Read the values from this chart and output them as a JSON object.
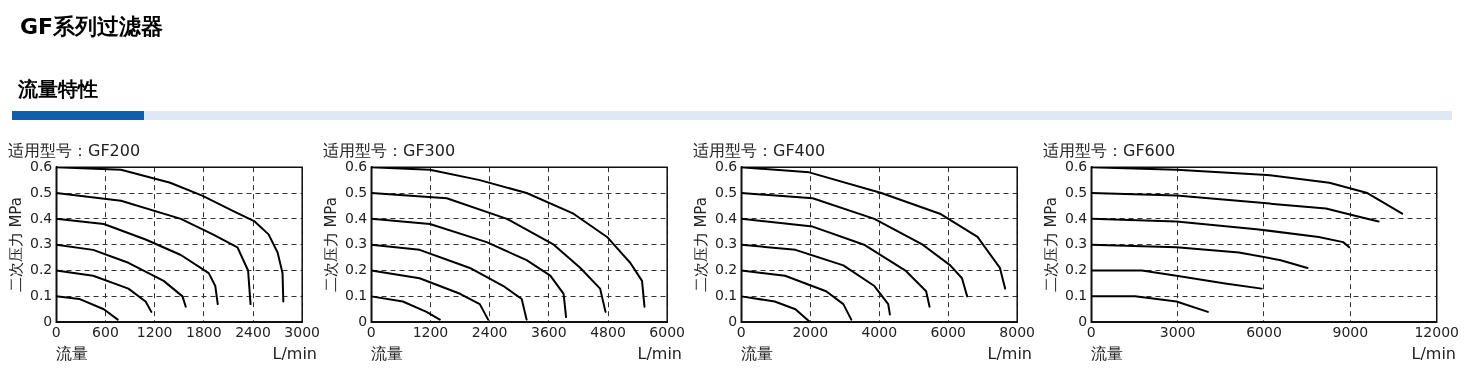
{
  "chart_data": [
    {
      "type": "other",
      "title": "GF系列过滤器",
      "subtitle": "流量特性"
    },
    {
      "type": "line",
      "title": "适用型号：GF200",
      "xlabel": "流量",
      "ylabel": "二次压力 MPa",
      "annotations": [
        "L/min"
      ],
      "xlim": [
        0,
        3000
      ],
      "xticks": [
        0,
        600,
        1200,
        1800,
        2400,
        3000
      ],
      "ylim": [
        0,
        0.6
      ],
      "yticks": [
        0,
        0.1,
        0.2,
        0.3,
        0.4,
        0.5,
        0.6
      ],
      "grid": true,
      "marker": "none",
      "series": [
        {
          "color": "#000000",
          "x": [
            0,
            280,
            580,
            750
          ],
          "values": [
            0.1,
            0.09,
            0.05,
            0.01
          ]
        },
        {
          "color": "#000000",
          "x": [
            0,
            450,
            880,
            1090,
            1160
          ],
          "values": [
            0.2,
            0.18,
            0.13,
            0.08,
            0.04
          ]
        },
        {
          "color": "#000000",
          "x": [
            0,
            450,
            880,
            1310,
            1540,
            1580
          ],
          "values": [
            0.3,
            0.28,
            0.23,
            0.16,
            0.1,
            0.06
          ]
        },
        {
          "color": "#000000",
          "x": [
            0,
            580,
            1090,
            1520,
            1860,
            1940,
            1970
          ],
          "values": [
            0.4,
            0.38,
            0.32,
            0.26,
            0.19,
            0.14,
            0.07
          ]
        },
        {
          "color": "#000000",
          "x": [
            0,
            790,
            1520,
            1910,
            2210,
            2340,
            2370
          ],
          "values": [
            0.5,
            0.47,
            0.4,
            0.34,
            0.29,
            0.2,
            0.07
          ]
        },
        {
          "color": "#000000",
          "x": [
            0,
            790,
            1390,
            1780,
            2160,
            2420,
            2590,
            2700,
            2760,
            2770
          ],
          "values": [
            0.6,
            0.59,
            0.54,
            0.49,
            0.43,
            0.39,
            0.34,
            0.27,
            0.19,
            0.08
          ]
        }
      ]
    },
    {
      "type": "line",
      "title": "适用型号：GF300",
      "xlabel": "流量",
      "ylabel": "二次压力 MPa",
      "annotations": [
        "L/min"
      ],
      "xlim": [
        0,
        6000
      ],
      "xticks": [
        0,
        1200,
        2400,
        3600,
        4800,
        6000
      ],
      "ylim": [
        0,
        0.6
      ],
      "yticks": [
        0,
        0.1,
        0.2,
        0.3,
        0.4,
        0.5,
        0.6
      ],
      "grid": true,
      "marker": "none",
      "series": [
        {
          "color": "#000000",
          "x": [
            0,
            640,
            1120,
            1390
          ],
          "values": [
            0.1,
            0.08,
            0.04,
            0.01
          ]
        },
        {
          "color": "#000000",
          "x": [
            0,
            980,
            1800,
            2200,
            2370
          ],
          "values": [
            0.2,
            0.17,
            0.11,
            0.07,
            0.01
          ]
        },
        {
          "color": "#000000",
          "x": [
            0,
            980,
            2000,
            2680,
            3050,
            3150
          ],
          "values": [
            0.3,
            0.28,
            0.21,
            0.14,
            0.09,
            0.01
          ]
        },
        {
          "color": "#000000",
          "x": [
            0,
            1190,
            2340,
            3150,
            3630,
            3900,
            3950
          ],
          "values": [
            0.4,
            0.38,
            0.31,
            0.24,
            0.18,
            0.11,
            0.02
          ]
        },
        {
          "color": "#000000",
          "x": [
            0,
            1530,
            2750,
            3700,
            4240,
            4640,
            4750
          ],
          "values": [
            0.5,
            0.48,
            0.4,
            0.3,
            0.21,
            0.13,
            0.04
          ]
        },
        {
          "color": "#000000",
          "x": [
            0,
            1190,
            2200,
            3150,
            4100,
            4780,
            5250,
            5490,
            5540
          ],
          "values": [
            0.6,
            0.59,
            0.55,
            0.5,
            0.42,
            0.33,
            0.23,
            0.16,
            0.06
          ]
        }
      ]
    },
    {
      "type": "line",
      "title": "适用型号：GF400",
      "xlabel": "流量",
      "ylabel": "二次压力 MPa",
      "annotations": [
        "L/min"
      ],
      "xlim": [
        0,
        8000
      ],
      "xticks": [
        0,
        2000,
        4000,
        6000,
        8000
      ],
      "ylim": [
        0,
        0.6
      ],
      "yticks": [
        0,
        0.1,
        0.2,
        0.3,
        0.4,
        0.5,
        0.6
      ],
      "grid": true,
      "marker": "none",
      "series": [
        {
          "color": "#000000",
          "x": [
            0,
            970,
            1570,
            2000
          ],
          "values": [
            0.1,
            0.08,
            0.05,
            0.0
          ]
        },
        {
          "color": "#000000",
          "x": [
            0,
            1270,
            2460,
            2960,
            3190
          ],
          "values": [
            0.2,
            0.18,
            0.12,
            0.07,
            0.01
          ]
        },
        {
          "color": "#000000",
          "x": [
            0,
            1570,
            2960,
            3860,
            4260,
            4310
          ],
          "values": [
            0.3,
            0.28,
            0.22,
            0.14,
            0.07,
            0.03
          ]
        },
        {
          "color": "#000000",
          "x": [
            0,
            2070,
            3560,
            4760,
            5360,
            5460
          ],
          "values": [
            0.4,
            0.37,
            0.3,
            0.2,
            0.12,
            0.06
          ]
        },
        {
          "color": "#000000",
          "x": [
            0,
            2070,
            3860,
            5260,
            6060,
            6400,
            6550
          ],
          "values": [
            0.5,
            0.48,
            0.4,
            0.3,
            0.22,
            0.17,
            0.1
          ]
        },
        {
          "color": "#000000",
          "x": [
            0,
            1970,
            4060,
            5760,
            6850,
            7500,
            7650
          ],
          "values": [
            0.6,
            0.58,
            0.5,
            0.42,
            0.33,
            0.21,
            0.13
          ]
        }
      ]
    },
    {
      "type": "line",
      "title": "适用型号：GF600",
      "xlabel": "流量",
      "ylabel": "二次压力 MPa",
      "annotations": [
        "L/min"
      ],
      "xlim": [
        0,
        12000
      ],
      "xticks": [
        0,
        3000,
        6000,
        9000,
        12000
      ],
      "ylim": [
        0,
        0.6
      ],
      "yticks": [
        0,
        0.1,
        0.2,
        0.3,
        0.4,
        0.5,
        0.6
      ],
      "grid": true,
      "marker": "none",
      "series": [
        {
          "color": "#000000",
          "x": [
            0,
            1520,
            2960,
            4050
          ],
          "values": [
            0.1,
            0.1,
            0.08,
            0.04
          ]
        },
        {
          "color": "#000000",
          "x": [
            0,
            1760,
            2960,
            4650,
            5920
          ],
          "values": [
            0.2,
            0.2,
            0.18,
            0.15,
            0.13
          ]
        },
        {
          "color": "#000000",
          "x": [
            0,
            2960,
            5130,
            6580,
            7510
          ],
          "values": [
            0.3,
            0.29,
            0.27,
            0.24,
            0.21
          ]
        },
        {
          "color": "#000000",
          "x": [
            0,
            2960,
            5740,
            7900,
            8750,
            8960
          ],
          "values": [
            0.4,
            0.39,
            0.36,
            0.33,
            0.31,
            0.29
          ]
        },
        {
          "color": "#000000",
          "x": [
            0,
            2960,
            6100,
            8150,
            9230,
            9980
          ],
          "values": [
            0.5,
            0.49,
            0.46,
            0.44,
            0.41,
            0.39
          ]
        },
        {
          "color": "#000000",
          "x": [
            0,
            2960,
            6100,
            8270,
            9590,
            10800
          ],
          "values": [
            0.6,
            0.59,
            0.57,
            0.54,
            0.5,
            0.42
          ]
        }
      ]
    }
  ]
}
